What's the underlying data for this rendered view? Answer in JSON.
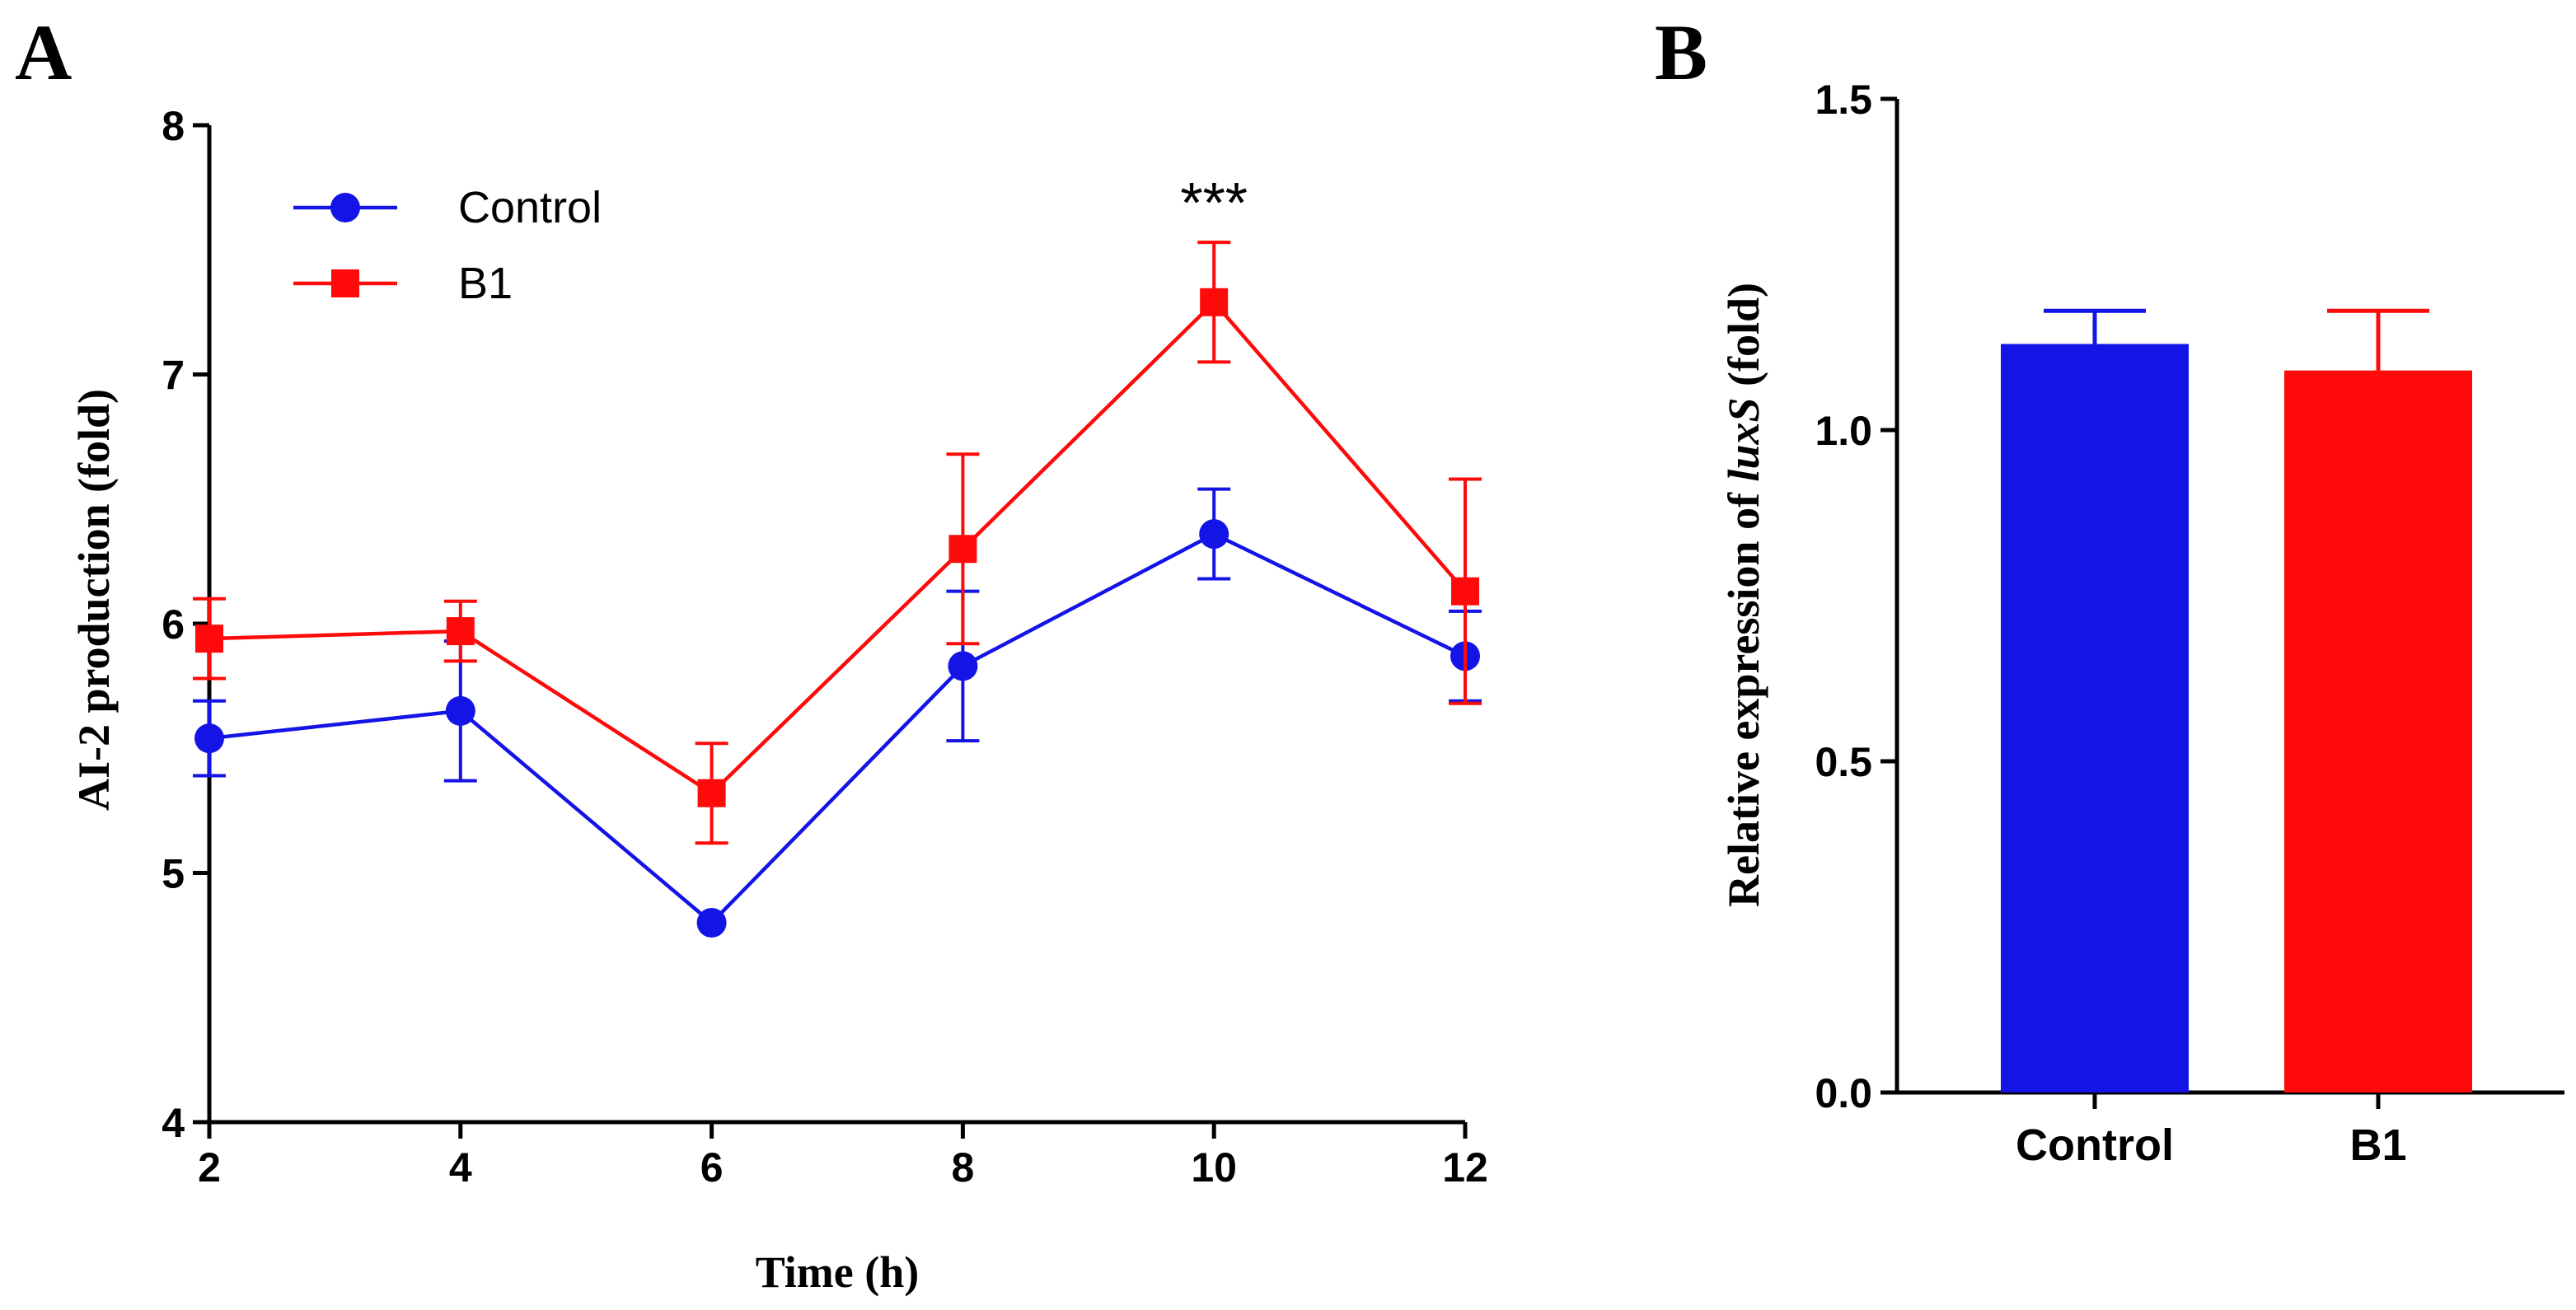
{
  "colors": {
    "control": "#1414e6",
    "b1": "#ff0a0a",
    "axis": "#000000"
  },
  "chart_data": [
    {
      "panel": "A",
      "type": "line",
      "xlabel": "Time (h)",
      "ylabel": "AI-2 production (fold)",
      "xlim": [
        2,
        12
      ],
      "ylim": [
        4,
        8
      ],
      "x_ticks": [
        2,
        4,
        6,
        8,
        10,
        12
      ],
      "y_ticks": [
        4,
        5,
        6,
        7,
        8
      ],
      "x": [
        2,
        4,
        6,
        8,
        10,
        12
      ],
      "legend_position": "top-left",
      "series": [
        {
          "name": "Control",
          "marker": "circle",
          "color": "#1414e6",
          "values": [
            5.54,
            5.65,
            4.8,
            5.83,
            6.36,
            5.87
          ],
          "errors": [
            0.15,
            0.28,
            0.0,
            0.3,
            0.18,
            0.18
          ]
        },
        {
          "name": "B1",
          "marker": "square",
          "color": "#ff0a0a",
          "values": [
            5.94,
            5.97,
            5.32,
            6.3,
            7.29,
            6.13
          ],
          "errors": [
            0.16,
            0.12,
            0.2,
            0.38,
            0.24,
            0.45
          ]
        }
      ],
      "annotations": [
        {
          "x": 10,
          "text": "***"
        }
      ]
    },
    {
      "panel": "B",
      "type": "bar",
      "xlabel": "",
      "ylabel_prefix": "Relative expression of ",
      "ylabel_gene": "luxS",
      "ylabel_suffix": " (fold)",
      "ylim": [
        0,
        1.5
      ],
      "y_ticks": [
        "0.0",
        "0.5",
        "1.0",
        "1.5"
      ],
      "categories": [
        "Control",
        "B1"
      ],
      "values": [
        1.13,
        1.09
      ],
      "errors": [
        0.05,
        0.09
      ],
      "colors": [
        "#1414e6",
        "#ff0a0a"
      ]
    }
  ]
}
